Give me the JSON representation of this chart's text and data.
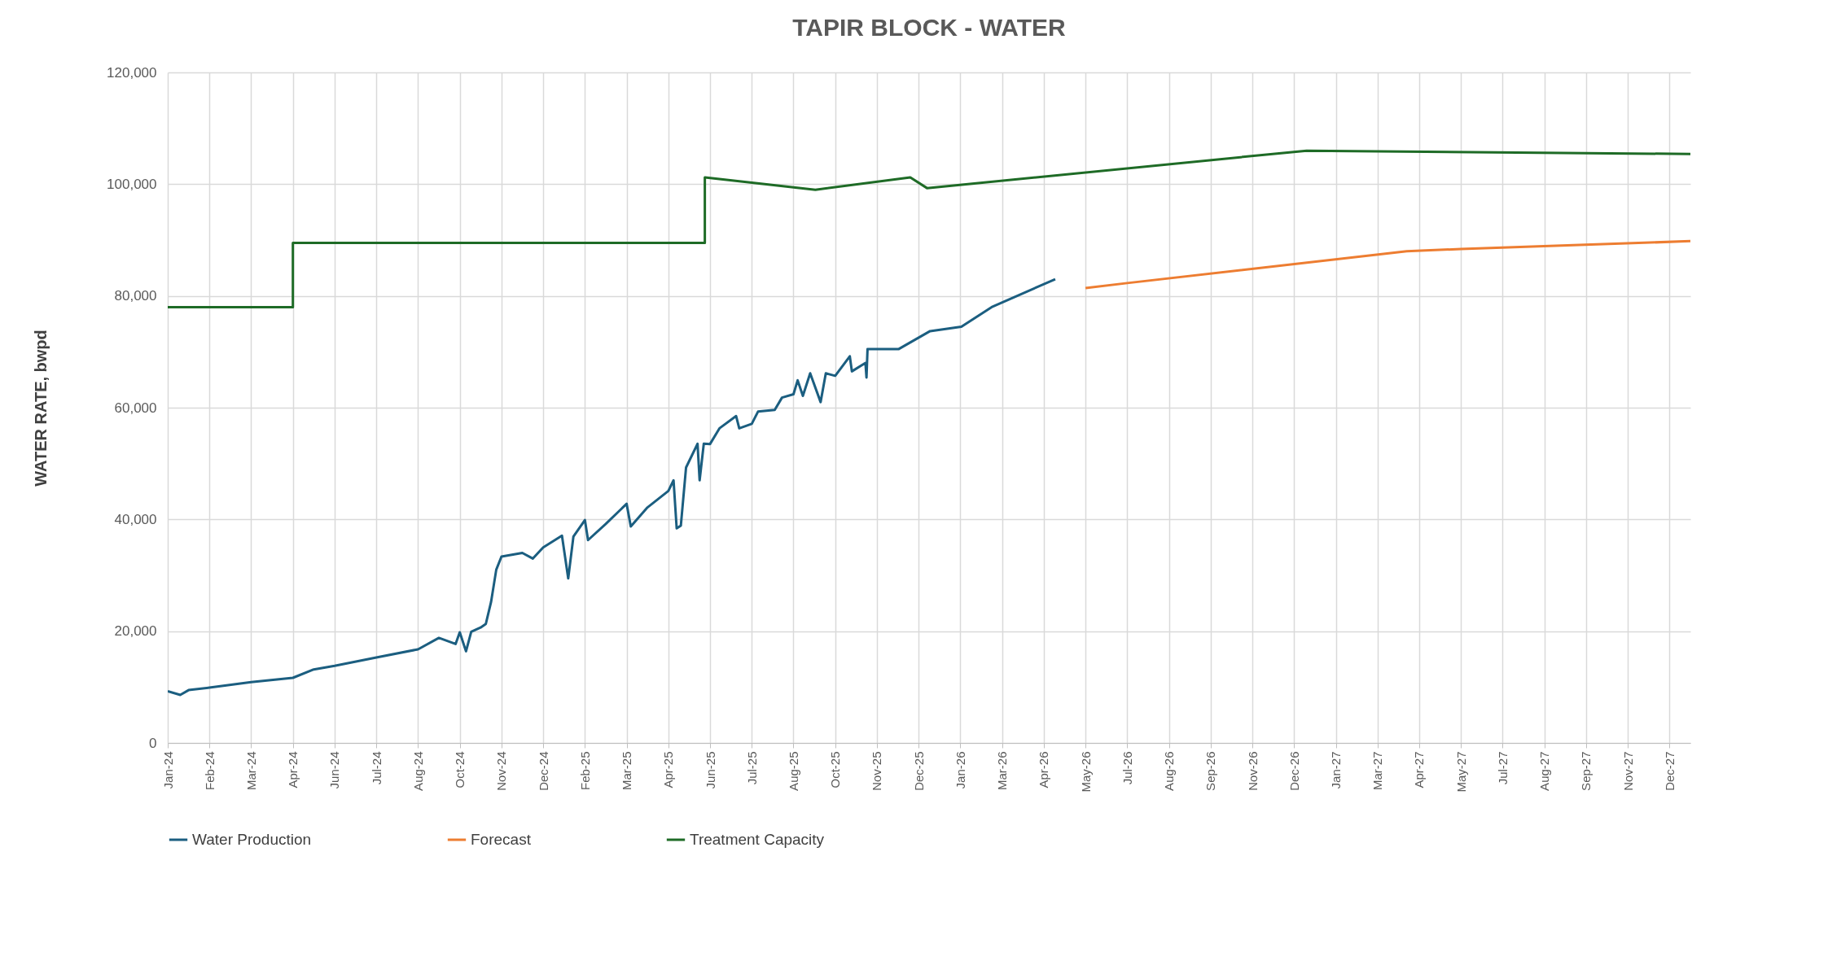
{
  "chart_data": {
    "type": "line",
    "title": "TAPIR BLOCK  - WATER",
    "ylabel": "WATER RATE,  bwpd",
    "xlim": [
      "2024-01-01",
      "2027-12-31"
    ],
    "xticks": [
      {
        "value": "2024-01-01",
        "label": "Jan-24"
      },
      {
        "value": "2024-02-10",
        "label": "Feb-24"
      },
      {
        "value": "2024-03-21",
        "label": "Mar-24"
      },
      {
        "value": "2024-04-30",
        "label": "Apr-24"
      },
      {
        "value": "2024-06-09",
        "label": "Jun-24"
      },
      {
        "value": "2024-07-19",
        "label": "Jul-24"
      },
      {
        "value": "2024-08-28",
        "label": "Aug-24"
      },
      {
        "value": "2024-10-07",
        "label": "Oct-24"
      },
      {
        "value": "2024-11-16",
        "label": "Nov-24"
      },
      {
        "value": "2024-12-26",
        "label": "Dec-24"
      },
      {
        "value": "2025-02-04",
        "label": "Feb-25"
      },
      {
        "value": "2025-03-16",
        "label": "Mar-25"
      },
      {
        "value": "2025-04-25",
        "label": "Apr-25"
      },
      {
        "value": "2025-06-04",
        "label": "Jun-25"
      },
      {
        "value": "2025-07-14",
        "label": "Jul-25"
      },
      {
        "value": "2025-08-23",
        "label": "Aug-25"
      },
      {
        "value": "2025-10-02",
        "label": "Oct-25"
      },
      {
        "value": "2025-11-11",
        "label": "Nov-25"
      },
      {
        "value": "2025-12-21",
        "label": "Dec-25"
      },
      {
        "value": "2026-01-30",
        "label": "Jan-26"
      },
      {
        "value": "2026-03-11",
        "label": "Mar-26"
      },
      {
        "value": "2026-04-20",
        "label": "Apr-26"
      },
      {
        "value": "2026-05-30",
        "label": "May-26"
      },
      {
        "value": "2026-07-09",
        "label": "Jul-26"
      },
      {
        "value": "2026-08-18",
        "label": "Aug-26"
      },
      {
        "value": "2026-09-27",
        "label": "Sep-26"
      },
      {
        "value": "2026-11-06",
        "label": "Nov-26"
      },
      {
        "value": "2026-12-16",
        "label": "Dec-26"
      },
      {
        "value": "2027-01-25",
        "label": "Jan-27"
      },
      {
        "value": "2027-03-06",
        "label": "Mar-27"
      },
      {
        "value": "2027-04-15",
        "label": "Apr-27"
      },
      {
        "value": "2027-05-25",
        "label": "May-27"
      },
      {
        "value": "2027-07-04",
        "label": "Jul-27"
      },
      {
        "value": "2027-08-13",
        "label": "Aug-27"
      },
      {
        "value": "2027-09-22",
        "label": "Sep-27"
      },
      {
        "value": "2027-11-01",
        "label": "Nov-27"
      },
      {
        "value": "2027-12-11",
        "label": "Dec-27"
      }
    ],
    "ylim": [
      0,
      120000
    ],
    "yticks": [
      {
        "value": 0,
        "label": "0"
      },
      {
        "value": 20000,
        "label": "20,000"
      },
      {
        "value": 40000,
        "label": "40,000"
      },
      {
        "value": 60000,
        "label": "60,000"
      },
      {
        "value": 80000,
        "label": "80,000"
      },
      {
        "value": 100000,
        "label": "100,000"
      },
      {
        "value": 120000,
        "label": "120,000"
      }
    ],
    "grid": true,
    "legend": "bottom",
    "series": [
      {
        "name": "Water Production",
        "color": "#1b5e80",
        "x": [
          "2024-01-01",
          "2024-01-13",
          "2024-01-21",
          "2024-02-10",
          "2024-03-21",
          "2024-04-30",
          "2024-05-20",
          "2024-06-09",
          "2024-07-19",
          "2024-08-28",
          "2024-09-17",
          "2024-10-03",
          "2024-10-07",
          "2024-10-13",
          "2024-10-18",
          "2024-10-27",
          "2024-11-01",
          "2024-11-06",
          "2024-11-11",
          "2024-11-16",
          "2024-12-06",
          "2024-12-16",
          "2024-12-26",
          "2025-01-13",
          "2025-01-19",
          "2025-01-24",
          "2025-02-04",
          "2025-02-07",
          "2025-02-24",
          "2025-03-16",
          "2025-03-20",
          "2025-04-05",
          "2025-04-25",
          "2025-04-30",
          "2025-05-03",
          "2025-05-07",
          "2025-05-12",
          "2025-05-23",
          "2025-05-25",
          "2025-05-29",
          "2025-06-04",
          "2025-06-13",
          "2025-06-29",
          "2025-07-02",
          "2025-07-14",
          "2025-07-20",
          "2025-08-05",
          "2025-08-12",
          "2025-08-23",
          "2025-08-27",
          "2025-09-01",
          "2025-09-08",
          "2025-09-18",
          "2025-09-23",
          "2025-10-02",
          "2025-10-16",
          "2025-10-18",
          "2025-10-31",
          "2025-11-01",
          "2025-11-02",
          "2025-12-02",
          "2026-01-01",
          "2026-01-31",
          "2026-03-01",
          "2026-05-01"
        ],
        "values": [
          9250,
          8600,
          9450,
          9900,
          10900,
          11650,
          13150,
          13800,
          15300,
          16750,
          18800,
          17700,
          19800,
          16400,
          19900,
          20650,
          21300,
          25200,
          31000,
          33350,
          34000,
          33000,
          35000,
          37100,
          29450,
          36950,
          39900,
          36300,
          39200,
          42800,
          38750,
          42150,
          45100,
          47000,
          38400,
          38900,
          49300,
          53550,
          47000,
          53550,
          53500,
          56300,
          58500,
          56300,
          57100,
          59300,
          59600,
          61800,
          62400,
          64900,
          62100,
          66150,
          61000,
          66150,
          65700,
          69200,
          66500,
          68000,
          65400,
          70500,
          70500,
          73700,
          74500,
          78000,
          83000
        ]
      },
      {
        "name": "Forecast",
        "color": "#ed7d31",
        "x": [
          "2026-05-30",
          "2026-07-09",
          "2027-04-03",
          "2027-05-25",
          "2027-12-31"
        ],
        "values": [
          81400,
          82300,
          88000,
          88400,
          89800
        ]
      },
      {
        "name": "Treatment Capacity",
        "color": "#1e6b26",
        "x": [
          "2024-01-01",
          "2024-04-30",
          "2024-04-30",
          "2025-05-30",
          "2025-05-30",
          "2025-09-13",
          "2025-12-13",
          "2025-12-29",
          "2026-12-28",
          "2027-12-31"
        ],
        "values": [
          78000,
          78000,
          89500,
          89500,
          101200,
          99000,
          101200,
          99300,
          106000,
          105400
        ]
      }
    ]
  }
}
